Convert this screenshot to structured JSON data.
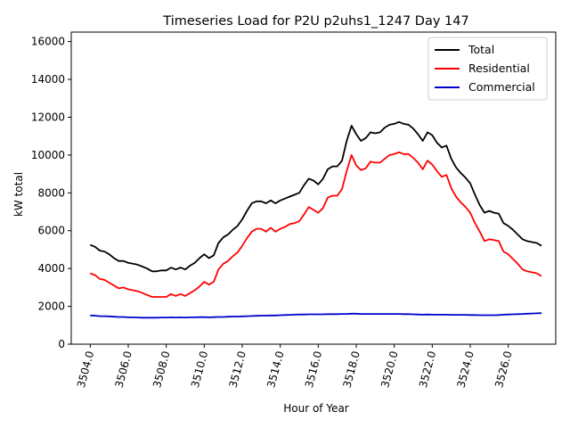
{
  "chart_data": {
    "type": "line",
    "title": "Timeseries Load for P2U p2uhs1_1247  Day 147",
    "xlabel": "Hour of Year",
    "ylabel": "kW total",
    "xlim": [
      3503.0,
      3528.5
    ],
    "ylim": [
      0,
      16500
    ],
    "xticks": [
      3504,
      3506,
      3508,
      3510,
      3512,
      3514,
      3516,
      3518,
      3520,
      3522,
      3524,
      3526
    ],
    "xtick_labels": [
      "3504.0",
      "3506.0",
      "3508.0",
      "3510.0",
      "3512.0",
      "3514.0",
      "3516.0",
      "3518.0",
      "3520.0",
      "3522.0",
      "3524.0",
      "3526.0"
    ],
    "yticks": [
      0,
      2000,
      4000,
      6000,
      8000,
      10000,
      12000,
      14000,
      16000
    ],
    "ytick_labels": [
      "0",
      "2000",
      "4000",
      "6000",
      "8000",
      "10000",
      "12000",
      "14000",
      "16000"
    ],
    "legend_position": "top-right",
    "x": [
      3504.0,
      3504.25,
      3504.5,
      3504.75,
      3505.0,
      3505.25,
      3505.5,
      3505.75,
      3506.0,
      3506.25,
      3506.5,
      3506.75,
      3507.0,
      3507.25,
      3507.5,
      3507.75,
      3508.0,
      3508.25,
      3508.5,
      3508.75,
      3509.0,
      3509.25,
      3509.5,
      3509.75,
      3510.0,
      3510.25,
      3510.5,
      3510.75,
      3511.0,
      3511.25,
      3511.5,
      3511.75,
      3512.0,
      3512.25,
      3512.5,
      3512.75,
      3513.0,
      3513.25,
      3513.5,
      3513.75,
      3514.0,
      3514.25,
      3514.5,
      3514.75,
      3515.0,
      3515.25,
      3515.5,
      3515.75,
      3516.0,
      3516.25,
      3516.5,
      3516.75,
      3517.0,
      3517.25,
      3517.5,
      3517.75,
      3518.0,
      3518.25,
      3518.5,
      3518.75,
      3519.0,
      3519.25,
      3519.5,
      3519.75,
      3520.0,
      3520.25,
      3520.5,
      3520.75,
      3521.0,
      3521.25,
      3521.5,
      3521.75,
      3522.0,
      3522.25,
      3522.5,
      3522.75,
      3523.0,
      3523.25,
      3523.5,
      3523.75,
      3524.0,
      3524.25,
      3524.5,
      3524.75,
      3525.0,
      3525.25,
      3525.5,
      3525.75,
      3526.0,
      3526.25,
      3526.5,
      3526.75,
      3527.0,
      3527.25,
      3527.5,
      3527.75
    ],
    "series": [
      {
        "name": "Total",
        "color": "#000000",
        "values": [
          5250,
          5150,
          4950,
          4900,
          4750,
          4550,
          4400,
          4400,
          4300,
          4250,
          4200,
          4100,
          4000,
          3850,
          3850,
          3900,
          3900,
          4050,
          3950,
          4050,
          3950,
          4150,
          4300,
          4550,
          4750,
          4550,
          4700,
          5350,
          5650,
          5800,
          6050,
          6250,
          6600,
          7050,
          7450,
          7550,
          7550,
          7450,
          7600,
          7450,
          7600,
          7700,
          7800,
          7900,
          8000,
          8400,
          8750,
          8650,
          8450,
          8750,
          9250,
          9400,
          9400,
          9700,
          10750,
          11550,
          11100,
          10750,
          10900,
          11200,
          11150,
          11200,
          11450,
          11600,
          11650,
          11750,
          11650,
          11600,
          11400,
          11100,
          10750,
          11200,
          11050,
          10650,
          10400,
          10500,
          9800,
          9350,
          9050,
          8800,
          8500,
          7900,
          7350,
          6950,
          7050,
          6950,
          6900,
          6400,
          6250,
          6050,
          5800,
          5550,
          5450,
          5400,
          5350,
          5200
        ]
      },
      {
        "name": "Residential",
        "color": "#ff0000",
        "values": [
          3750,
          3650,
          3450,
          3400,
          3250,
          3100,
          2950,
          3000,
          2900,
          2850,
          2800,
          2700,
          2600,
          2500,
          2500,
          2500,
          2500,
          2650,
          2550,
          2650,
          2550,
          2700,
          2850,
          3050,
          3300,
          3150,
          3300,
          3950,
          4250,
          4400,
          4650,
          4850,
          5200,
          5600,
          5950,
          6100,
          6100,
          5950,
          6150,
          5950,
          6100,
          6200,
          6350,
          6400,
          6500,
          6850,
          7250,
          7100,
          6950,
          7200,
          7750,
          7850,
          7850,
          8200,
          9150,
          10000,
          9450,
          9200,
          9300,
          9650,
          9600,
          9600,
          9800,
          10000,
          10050,
          10150,
          10050,
          10050,
          9850,
          9600,
          9250,
          9700,
          9500,
          9150,
          8850,
          8950,
          8250,
          7800,
          7500,
          7250,
          6950,
          6400,
          5950,
          5450,
          5550,
          5500,
          5450,
          4900,
          4750,
          4500,
          4250,
          3950,
          3850,
          3800,
          3750,
          3600
        ]
      },
      {
        "name": "Commercial",
        "color": "#0000cd",
        "values": [
          1520,
          1510,
          1480,
          1480,
          1470,
          1450,
          1440,
          1440,
          1420,
          1420,
          1410,
          1400,
          1400,
          1400,
          1400,
          1410,
          1410,
          1420,
          1410,
          1420,
          1410,
          1420,
          1420,
          1430,
          1430,
          1420,
          1430,
          1440,
          1440,
          1450,
          1460,
          1460,
          1470,
          1480,
          1490,
          1500,
          1510,
          1510,
          1520,
          1520,
          1530,
          1540,
          1550,
          1560,
          1570,
          1570,
          1580,
          1580,
          1580,
          1580,
          1590,
          1590,
          1590,
          1600,
          1600,
          1610,
          1610,
          1600,
          1600,
          1600,
          1600,
          1600,
          1600,
          1600,
          1600,
          1600,
          1590,
          1590,
          1580,
          1570,
          1560,
          1570,
          1560,
          1560,
          1560,
          1560,
          1550,
          1550,
          1550,
          1550,
          1540,
          1540,
          1530,
          1530,
          1530,
          1530,
          1540,
          1560,
          1570,
          1580,
          1590,
          1600,
          1610,
          1620,
          1630,
          1640
        ]
      }
    ]
  }
}
